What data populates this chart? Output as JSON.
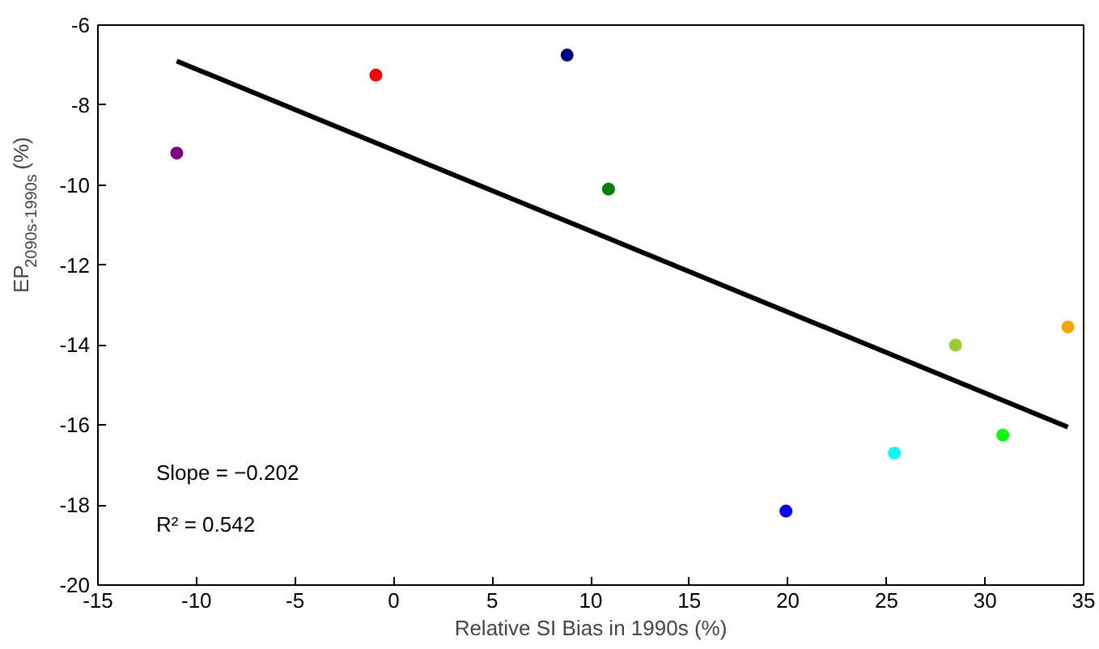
{
  "chart_data": {
    "type": "scatter",
    "xlabel": "Relative SI Bias in 1990s (%)",
    "ylabel": "EP$_{2090s-1990s}$(%)",
    "xlim": [
      -15,
      35
    ],
    "xticks": [
      -15,
      -10,
      -5,
      0,
      5,
      10,
      15,
      20,
      25,
      30,
      35
    ],
    "ylim": [
      -20,
      -6
    ],
    "yticks": [
      -20,
      -18,
      -16,
      -14,
      -12,
      -10,
      -8,
      -6
    ],
    "grid": false,
    "annotations": [
      "Slope = −0.202",
      "R² = 0.542"
    ],
    "series": [
      {
        "type": "scatter",
        "marker": "circle",
        "x": [
          -11,
          -0.9,
          8.8,
          10.9,
          19.9,
          25.4,
          28.5,
          30.9,
          34.2
        ],
        "values": [
          -9.2,
          -7.25,
          -6.75,
          -10.1,
          -18.15,
          -16.7,
          -14.0,
          -16.25,
          -13.55
        ],
        "colors": [
          "#800080",
          "#ff0000",
          "#000080",
          "#008000",
          "#0000ff",
          "#00ffff",
          "#99cc33",
          "#00ff00",
          "#ffa500"
        ]
      },
      {
        "type": "line",
        "x": [
          -11,
          34.2
        ],
        "values": [
          -6.9,
          -16.05
        ],
        "color": "#000000",
        "line_style": "solid"
      }
    ]
  }
}
